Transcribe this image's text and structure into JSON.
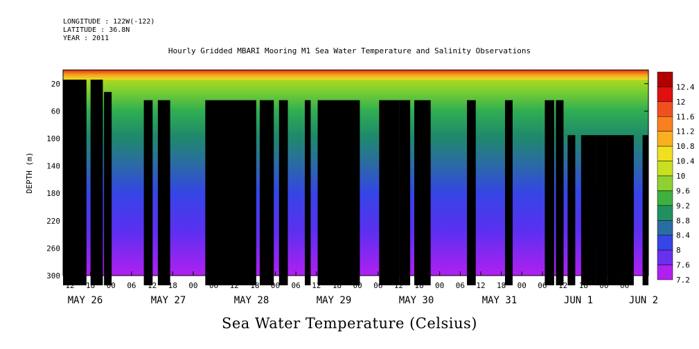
{
  "header": {
    "longitude": "LONGITUDE : 122W(-122)",
    "latitude": "LATITUDE : 36.8N",
    "year": "YEAR : 2011"
  },
  "chart_data": {
    "type": "heatmap",
    "title": "Hourly Gridded MBARI Mooring M1 Sea Water Temperature and Salinity Observations",
    "xlabel": "Sea Water Temperature (Celsius)",
    "ylabel": "DEPTH (m)",
    "ylim": [
      300,
      0
    ],
    "y_ticks": [
      20,
      60,
      100,
      140,
      180,
      220,
      260,
      300
    ],
    "x_hour_ticks": [
      "12",
      "18",
      "00",
      "06",
      "12",
      "18",
      "00",
      "06",
      "12",
      "18",
      "00",
      "06",
      "12",
      "18",
      "00",
      "06",
      "12",
      "18",
      "00",
      "06",
      "12",
      "18",
      "00",
      "06",
      "12",
      "18",
      "00",
      "06"
    ],
    "x_day_labels": [
      "MAY 26",
      "MAY 27",
      "MAY 28",
      "MAY 29",
      "MAY 30",
      "MAY 31",
      "JUN  1",
      "JUN  2"
    ],
    "colorbar_levels": [
      "12.4",
      "12",
      "11.6",
      "11.2",
      "10.8",
      "10.4",
      "10",
      "9.6",
      "9.2",
      "8.8",
      "8.4",
      "8",
      "7.6",
      "7.2"
    ],
    "colors": {
      "warm": "#d40000",
      "mid": "#8ecf2a",
      "cool": "#1f8a6a",
      "cold": "#4a3ae8",
      "coldest": "#b020f0"
    },
    "vmin": 7.2,
    "vmax": 12.6
  }
}
